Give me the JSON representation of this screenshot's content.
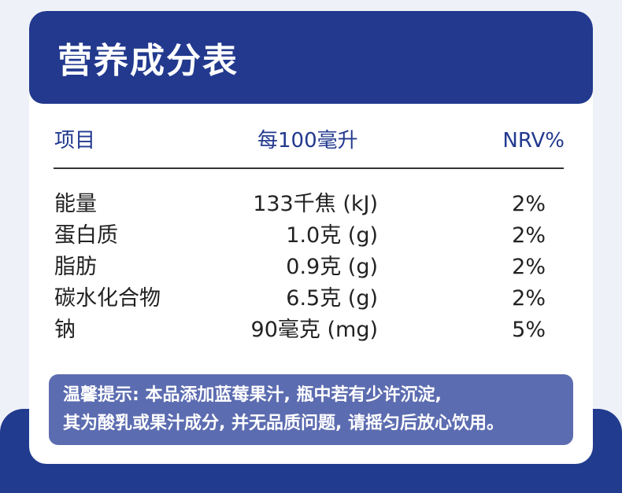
{
  "title": "营养成分表",
  "columns": {
    "item": "项目",
    "amount": "每100毫升",
    "nrv": "NRV%"
  },
  "rows": [
    {
      "name": "能量",
      "amount": "133千焦 (kJ)",
      "nrv": "2%"
    },
    {
      "name": "蛋白质",
      "amount": "1.0克 (g)",
      "nrv": "2%"
    },
    {
      "name": "脂肪",
      "amount": "0.9克 (g)",
      "nrv": "2%"
    },
    {
      "name": "碳水化合物",
      "amount": "6.5克 (g)",
      "nrv": "2%"
    },
    {
      "name": "钠",
      "amount": "90毫克 (mg)",
      "nrv": "5%"
    }
  ],
  "notice": {
    "line1": "温馨提示: 本品添加蓝莓果汁, 瓶中若有少许沉淀,",
    "line2": "其为酸乳或果汁成分, 并无品质问题, 请摇匀后放心饮用。"
  },
  "colors": {
    "header_bg": "#22398e",
    "column_header_text": "#22398e",
    "notice_bg": "#5c6cb0",
    "page_bg": "#eef1f8"
  }
}
